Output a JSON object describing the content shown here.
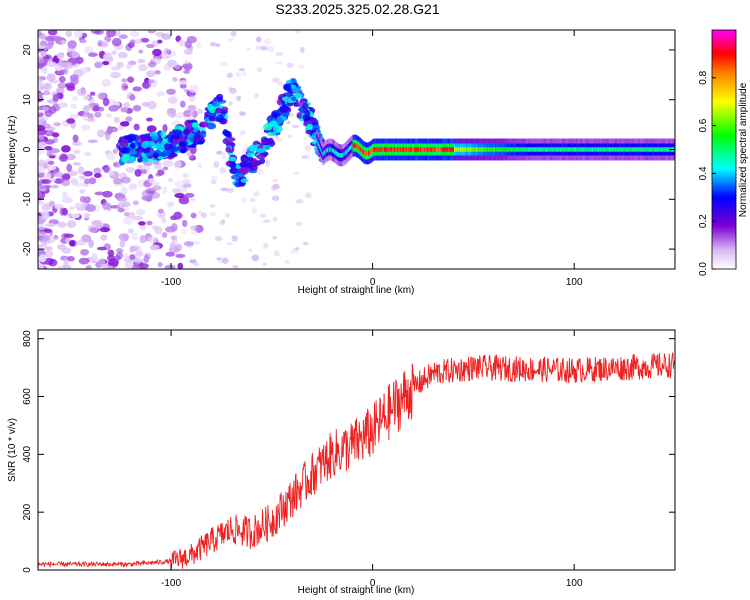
{
  "title": "S233.2025.325.02.28.G21",
  "chart_data": [
    {
      "type": "heatmap",
      "xlabel": "Height of straight line (km)",
      "ylabel": "Frequency (Hz)",
      "xlim": [
        -166,
        150
      ],
      "ylim": [
        -24,
        24
      ],
      "xticks": [
        -100,
        0,
        100
      ],
      "yticks": [
        -20,
        -10,
        0,
        10,
        20
      ],
      "colorbar": {
        "label": "Normalized spectral amplitude",
        "range": [
          0,
          1
        ],
        "ticks": [
          0.0,
          0.2,
          0.4,
          0.6,
          0.8
        ],
        "tick_labels": [
          "0.0",
          "0.2",
          "0.4",
          "0.6",
          "0.8"
        ],
        "colors": [
          "#ffffff",
          "#7b00d4",
          "#0000ff",
          "#00ffff",
          "#00ff00",
          "#ffff00",
          "#ff7f00",
          "#ff0000",
          "#ff00ff"
        ]
      },
      "ridge": [
        {
          "x": -118,
          "y": 0
        },
        {
          "x": -100,
          "y": 1
        },
        {
          "x": -85,
          "y": 4
        },
        {
          "x": -75,
          "y": 9
        },
        {
          "x": -68,
          "y": -6
        },
        {
          "x": -55,
          "y": 0
        },
        {
          "x": -40,
          "y": 12
        },
        {
          "x": -30,
          "y": 5
        },
        {
          "x": -25,
          "y": -1
        },
        {
          "x": -10,
          "y": 0
        },
        {
          "x": 0,
          "y": 0
        },
        {
          "x": 150,
          "y": 0
        }
      ]
    },
    {
      "type": "line",
      "xlabel": "Height of straight line (km)",
      "ylabel": "SNR (10 * v/v)",
      "xlim": [
        -166,
        150
      ],
      "ylim": [
        0,
        830
      ],
      "xticks": [
        -100,
        0,
        100
      ],
      "yticks": [
        0,
        200,
        400,
        600,
        800
      ],
      "color": "#ee2222",
      "series": [
        {
          "name": "SNR",
          "x": [
            -166,
            -120,
            -100,
            -90,
            -80,
            -70,
            -60,
            -50,
            -40,
            -30,
            -20,
            -10,
            0,
            10,
            20,
            30,
            50,
            100,
            150
          ],
          "values": [
            20,
            20,
            30,
            50,
            100,
            140,
            130,
            170,
            250,
            330,
            400,
            430,
            480,
            560,
            630,
            680,
            700,
            690,
            710
          ]
        }
      ]
    }
  ]
}
